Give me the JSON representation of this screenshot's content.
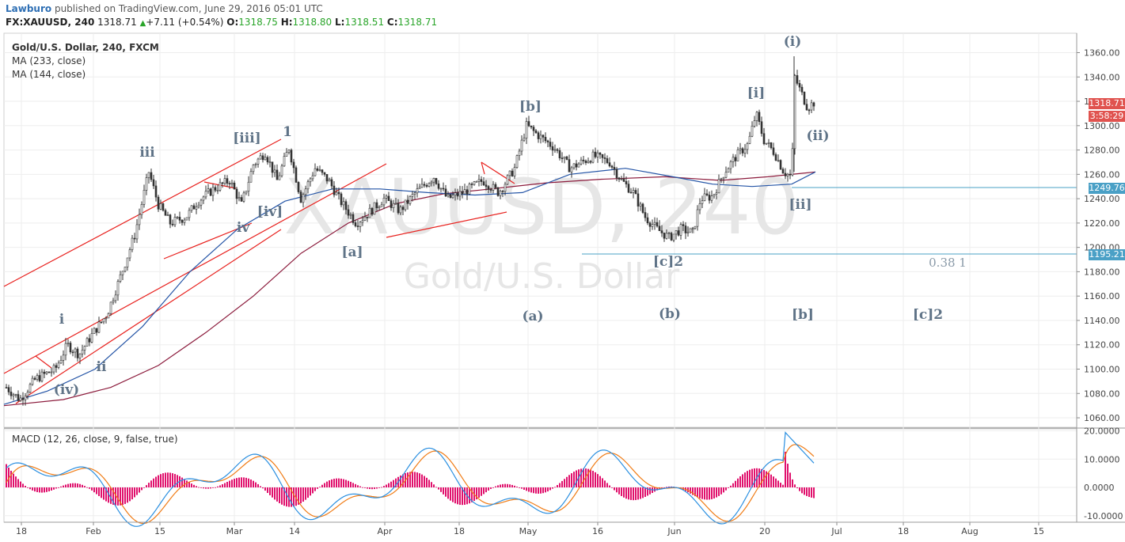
{
  "header": {
    "author": "Lawburo",
    "published_text": "published on TradingView.com, June 29, 2016 05:01 UTC",
    "symbol": "FX:XAUUSD, 240",
    "change": "1318.71",
    "change_abs": "+7.11 (+0.54%)",
    "open_label": "O:",
    "open": "1318.75",
    "high_label": "H:",
    "high": "1318.80",
    "low_label": "L:",
    "low": "1318.51",
    "close_label": "C:",
    "close": "1318.71"
  },
  "legend": {
    "title": "Gold/U.S. Dollar, 240, FXCM",
    "ma1": "MA (233, close)",
    "ma2": "MA (144, close)",
    "macd": "MACD (12, 26, close, 9, false, true)"
  },
  "watermark": {
    "symbol": "XAUUSD, 240",
    "name": "Gold/U.S. Dollar"
  },
  "price_tags": {
    "last_price": "1318.71",
    "countdown": "3:58:29",
    "level_1": "1249.76",
    "level_2": "1195.21"
  },
  "price_axis": [
    "1360.00",
    "1340.00",
    "1320.00",
    "1300.00",
    "1280.00",
    "1260.00",
    "1240.00",
    "1220.00",
    "1200.00",
    "1180.00",
    "1160.00",
    "1140.00",
    "1120.00",
    "1100.00",
    "1080.00",
    "1060.00"
  ],
  "macd_axis": [
    "20.0000",
    "10.0000",
    "0.0000",
    "-10.0000"
  ],
  "time_axis": [
    "18",
    "Feb",
    "15",
    "Mar",
    "14",
    "Apr",
    "18",
    "May",
    "16",
    "Jun",
    "20",
    "Jul",
    "18",
    "Aug",
    "15"
  ],
  "wave_labels": [
    "(i)",
    "[i]",
    "(ii)",
    "[ii]",
    "[b]",
    "[iii]",
    "1",
    "iii",
    "[iv]",
    "iv",
    "[a]",
    "[c]2",
    "0.38 1",
    "i",
    "ii",
    "(iv)",
    "(a)",
    "(b)",
    "[b]",
    "[c]2"
  ],
  "chart_data": {
    "type": "line",
    "instrument": "Gold/U.S. Dollar",
    "timeframe": "240",
    "ylim": [
      1060,
      1365
    ],
    "macd_ylim": [
      -11,
      20
    ],
    "colors": {
      "candles": "#333333",
      "ma233": "#8b1a3b",
      "ma144": "#2454a6",
      "trendline": "#e8201d",
      "macd_line": "#2a8fe0",
      "signal_line": "#f07c16",
      "histogram": "#e0106c",
      "level_line": "#4aa0c6"
    },
    "horizontal_levels": [
      1249.76,
      1195.21
    ]
  }
}
